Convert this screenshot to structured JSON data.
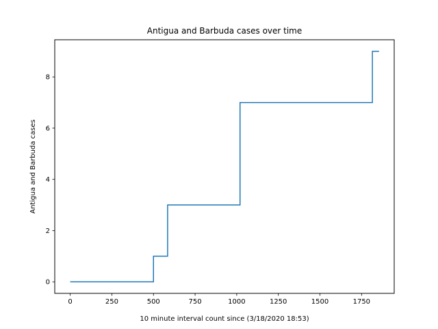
{
  "chart_data": {
    "type": "line",
    "step": "post",
    "title": "Antigua and Barbuda cases over time",
    "xlabel": "10 minute interval count since (3/18/2020 18:53)",
    "ylabel": "Antigua and Barbuda cases",
    "xlim": [
      -93,
      1946
    ],
    "ylim": [
      -0.45,
      9.45
    ],
    "xticks": [
      0,
      250,
      500,
      750,
      1000,
      1250,
      1500,
      1750
    ],
    "yticks": [
      0,
      2,
      4,
      6,
      8
    ],
    "grid": false,
    "series": [
      {
        "color": "#1f77b4",
        "x": [
          0,
          500,
          585,
          1020,
          1815,
          1855
        ],
        "y": [
          0,
          1,
          3,
          7,
          9,
          9
        ]
      }
    ]
  }
}
